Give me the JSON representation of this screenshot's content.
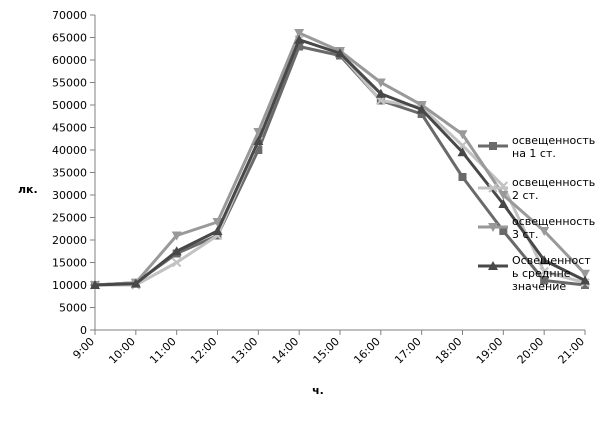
{
  "chart_data": {
    "type": "line",
    "xlabel": "ч.",
    "ylabel": "лк.",
    "ylim": [
      0,
      70000
    ],
    "ytick_step": 5000,
    "grid": false,
    "legend_position": "right",
    "categories": [
      "9:00",
      "10:00",
      "11:00",
      "12:00",
      "13:00",
      "14:00",
      "15:00",
      "16:00",
      "17:00",
      "18:00",
      "19:00",
      "20:00",
      "21:00"
    ],
    "series": [
      {
        "name": "освещенность на 1 ст.",
        "legend_lines": [
          "освещенность",
          "на 1 ст."
        ],
        "color": "#6a6a6a",
        "marker": "square",
        "values": [
          10000,
          10500,
          17000,
          21000,
          40000,
          63000,
          61000,
          51000,
          48000,
          34000,
          22000,
          11000,
          10000
        ]
      },
      {
        "name": "освещенность 2 ст.",
        "legend_lines": [
          "освещенность",
          "2 ст."
        ],
        "color": "#c2c2c2",
        "marker": "x",
        "values": [
          10000,
          10000,
          15000,
          21000,
          42000,
          64500,
          61500,
          51000,
          49500,
          41000,
          32000,
          13000,
          10500
        ]
      },
      {
        "name": "освещенность 3 ст.",
        "legend_lines": [
          "освещенность",
          "3 ст."
        ],
        "color": "#999999",
        "marker": "triangle-down",
        "values": [
          10000,
          10500,
          21000,
          24000,
          44000,
          66000,
          62000,
          55000,
          50000,
          43500,
          30000,
          22000,
          12500
        ]
      },
      {
        "name": "Освещенность среднне значение",
        "legend_lines": [
          "Освещенност",
          "ь среднне",
          "значение"
        ],
        "color": "#484848",
        "marker": "triangle",
        "values": [
          10000,
          10300,
          17500,
          22000,
          42000,
          64500,
          61500,
          52500,
          49000,
          39500,
          28000,
          15500,
          11000
        ]
      }
    ]
  }
}
